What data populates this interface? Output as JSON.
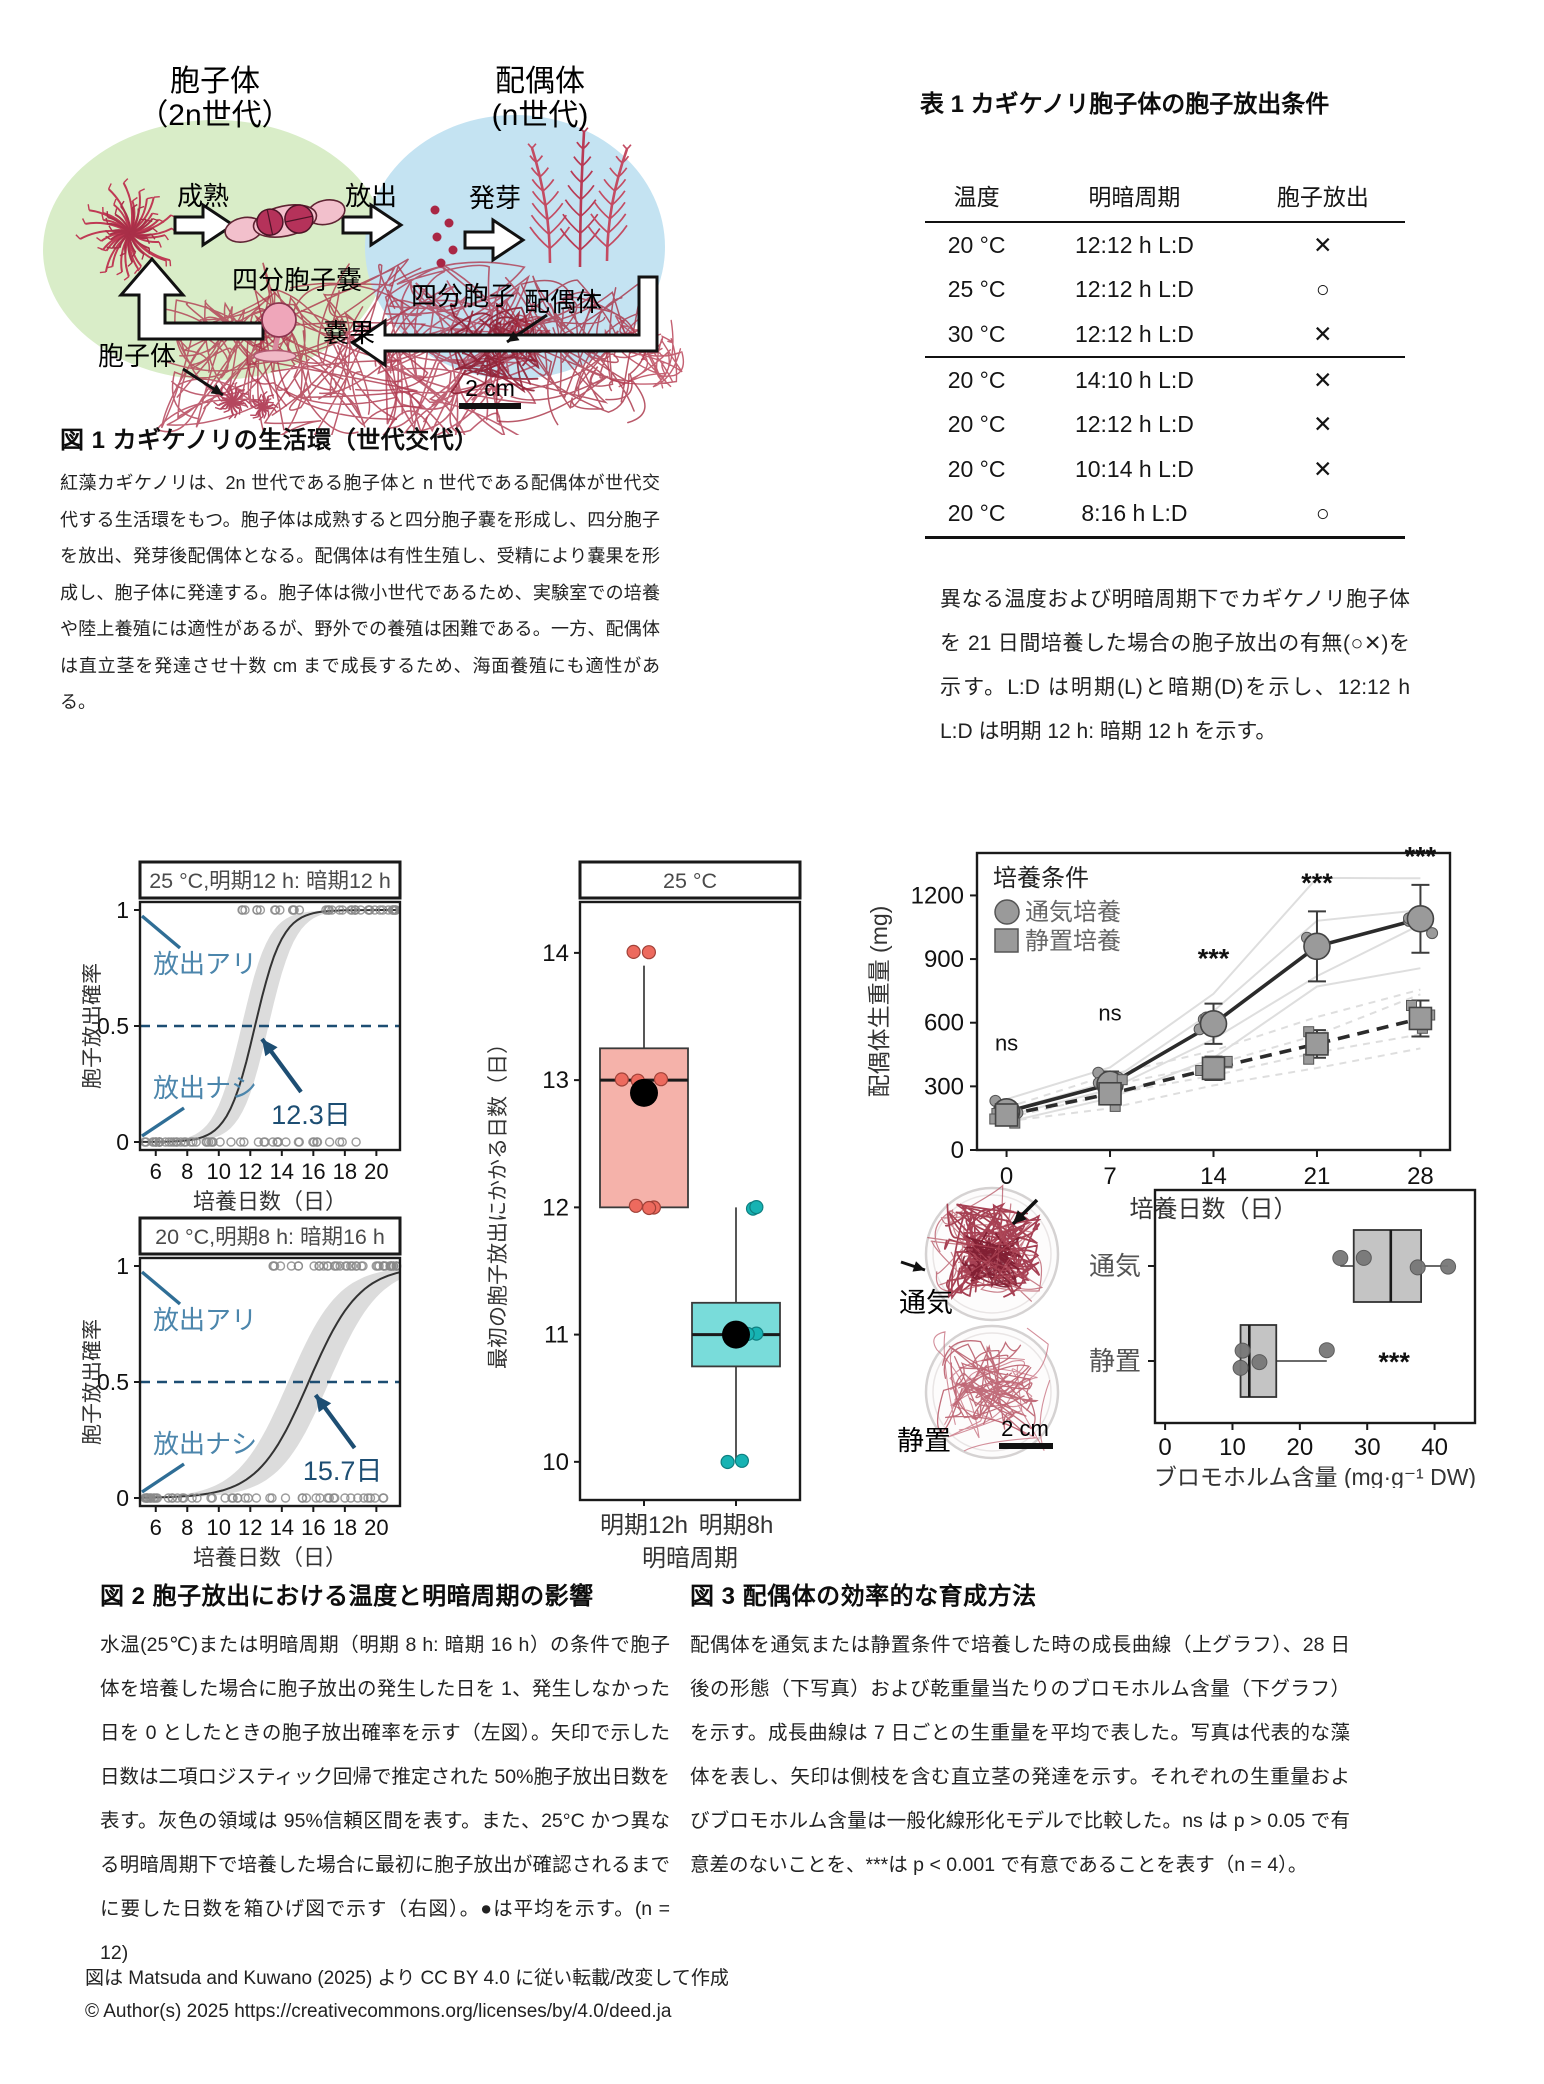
{
  "fig1": {
    "caption_title": "図 1 カギケノリの生活環（世代交代）",
    "caption_body": "紅藻カギケノリは、2n 世代である胞子体と n 世代である配偶体が世代交代する生活環をもつ。胞子体は成熟すると四分胞子嚢を形成し、四分胞子を放出、発芽後配偶体となる。配偶体は有性生殖し、受精により嚢果を形成し、胞子体に発達する。胞子体は微小世代であるため、実験室での培養や陸上養殖には適性があるが、野外での養殖は困難である。一方、配偶体は直立茎を発達させ十数 cm まで成長するため、海面養殖にも適性がある。",
    "diagram": {
      "sporophyte_title_line1": "胞子体",
      "sporophyte_title_line2": "（2n世代）",
      "gametophyte_title_line1": "配偶体",
      "gametophyte_title_line2": "(n世代)",
      "label_maturation": "成熟",
      "label_release": "放出",
      "label_germination": "発芽",
      "label_tetrasporangium": "四分胞子嚢",
      "label_tetraspore": "四分胞子",
      "label_cystocarp": "嚢果",
      "photo_label_sporophyte": "胞子体",
      "photo_label_gametophyte": "配偶体",
      "scalebar": "2 cm",
      "colors": {
        "sporophyte_ellipse": "#d9edc8",
        "gametophyte_ellipse": "#c4e3f2",
        "algae_red": "#b5394f"
      }
    }
  },
  "table1": {
    "title": "表 1 カギケノリ胞子体の胞子放出条件",
    "columns": [
      "温度",
      "明暗周期",
      "胞子放出"
    ],
    "groups": [
      {
        "rows": [
          [
            "20 °C",
            "12:12 h L:D",
            "✕"
          ],
          [
            "25 °C",
            "12:12 h L:D",
            "○"
          ],
          [
            "30 °C",
            "12:12 h L:D",
            "✕"
          ]
        ]
      },
      {
        "rows": [
          [
            "20 °C",
            "14:10 h L:D",
            "✕"
          ],
          [
            "20 °C",
            "12:12 h L:D",
            "✕"
          ],
          [
            "20 °C",
            "10:14 h L:D",
            "✕"
          ],
          [
            "20 °C",
            "8:16 h L:D",
            "○"
          ]
        ]
      }
    ],
    "note": "異なる温度および明暗周期下でカギケノリ胞子体を 21 日間培養した場合の胞子放出の有無(○✕)を示す。L:D は明期(L)と暗期(D)を示し、12:12 h L:D は明期 12 h: 暗期 12 h を示す。"
  },
  "fig2": {
    "caption_title": "図 2 胞子放出における温度と明暗周期の影響",
    "caption_body": "水温(25℃)または明暗周期（明期 8 h: 暗期 16 h）の条件で胞子体を培養した場合に胞子放出の発生した日を 1、発生しなかった日を 0 としたときの胞子放出確率を示す（左図）。矢印で示した日数は二項ロジスティック回帰で推定された 50%胞子放出日数を表す。灰色の領域は 95%信頼区間を表す。また、25°C かつ異なる明暗周期下で培養した場合に最初に胞子放出が確認されるまでに要した日数を箱ひげ図で示す（右図）。●は平均を示す。(n = 12)"
  },
  "fig3": {
    "caption_title": "図 3 配偶体の効率的な育成方法",
    "caption_body": "配偶体を通気または静置条件で培養した時の成長曲線（上グラフ）、28 日後の形態（下写真）および乾重量当たりのブロモホルム含量（下グラフ）を示す。成長曲線は 7 日ごとの生重量を平均で表した。写真は代表的な藻体を表し、矢印は側枝を含む直立茎の発達を示す。それぞれの生重量およびブロモホルム含量は一般化線形化モデルで比較した。ns は p > 0.05 で有意差のないことを、***は p < 0.001 で有意であることを表す（n = 4）。",
    "photos": {
      "aeration_label": "通気",
      "static_label": "静置",
      "scalebar": "2 cm"
    }
  },
  "footer": {
    "line1": "図は Matsuda and Kuwano (2025) より CC BY 4.0 に従い転載/改変して作成",
    "line2": "© Author(s) 2025 https://creativecommons.org/licenses/by/4.0/deed.ja"
  },
  "chart_data": [
    {
      "id": "logistic_25c_12h",
      "type": "line",
      "title": "25 °C,明期12 h: 暗期12 h",
      "xlabel": "培養日数（日）",
      "ylabel": "胞子放出確率",
      "xticks": [
        6,
        8,
        10,
        12,
        14,
        16,
        18,
        20
      ],
      "yticks": [
        0,
        0.5,
        1
      ],
      "xlim": [
        5,
        21.5
      ],
      "ed50_days": 12.3,
      "ed50_label": "12.3日",
      "slope": 1.15,
      "ci_width_days": 0.85,
      "threshold": 0.5,
      "label_release_yes": "放出アリ",
      "label_release_no": "放出ナシ",
      "rug_top_range": [
        11.2,
        21.3
      ],
      "rug_bottom_range": [
        5.3,
        18.8
      ],
      "colors": {
        "label_blue": "#4c86ac",
        "navy": "#1d4e73",
        "band": "#dcdcdc",
        "curve": "#333333"
      }
    },
    {
      "id": "logistic_20c_8h",
      "type": "line",
      "title": "20 °C,明期8 h: 暗期16 h",
      "xlabel": "培養日数（日）",
      "ylabel": "胞子放出確率",
      "xticks": [
        6,
        8,
        10,
        12,
        14,
        16,
        18,
        20
      ],
      "yticks": [
        0,
        0.5,
        1
      ],
      "xlim": [
        5,
        21.5
      ],
      "ed50_days": 15.7,
      "ed50_label": "15.7日",
      "slope": 0.62,
      "ci_width_days": 1.3,
      "threshold": 0.5,
      "label_release_yes": "放出アリ",
      "label_release_no": "放出ナシ",
      "rug_top_range": [
        13.2,
        21.3
      ],
      "rug_bottom_range": [
        5.3,
        20.5
      ],
      "colors": {
        "label_blue": "#4c86ac",
        "navy": "#1d4e73",
        "band": "#dcdcdc",
        "curve": "#333333"
      }
    },
    {
      "id": "first_release_days_boxplot",
      "type": "boxplot",
      "title": "25 °C",
      "xlabel": "明暗周期",
      "ylabel": "最初の胞子放出にかかる日数（日）",
      "yticks": [
        10,
        11,
        12,
        13,
        14
      ],
      "ylim": [
        9.7,
        14.4
      ],
      "categories": [
        "明期12h",
        "明期8h"
      ],
      "boxes": [
        {
          "label": "明期12h",
          "q1": 12,
          "median": 13,
          "q3": 13.25,
          "whisker_low": 12,
          "whisker_high": 13.9,
          "mean": 12.9,
          "points": [
            14,
            14,
            13,
            13,
            13,
            12,
            12,
            12
          ],
          "fill": "#f5b2aa",
          "point_color": "#ed6a5e",
          "point_stroke": "#a04138"
        },
        {
          "label": "明期8h",
          "q1": 10.75,
          "median": 11,
          "q3": 11.25,
          "whisker_low": 10,
          "whisker_high": 12,
          "mean": 11,
          "points": [
            12,
            12,
            11,
            11,
            11,
            10,
            10
          ],
          "fill": "#79dcda",
          "point_color": "#17b3b3",
          "point_stroke": "#0e7f80"
        }
      ],
      "n": 12
    },
    {
      "id": "gametophyte_growth",
      "type": "line",
      "legend_title": "培養条件",
      "xlabel": "培養日数（日）",
      "ylabel": "配偶体生重量 (mg)",
      "x": [
        0,
        7,
        14,
        21,
        28
      ],
      "xticks": [
        0,
        7,
        14,
        21,
        28
      ],
      "yticks": [
        0,
        300,
        600,
        900,
        1200
      ],
      "ylim": [
        0,
        1400
      ],
      "series": [
        {
          "name": "通気培養",
          "marker": "circle",
          "line": "solid",
          "values": [
            180,
            310,
            595,
            960,
            1090
          ],
          "errors": [
            45,
            60,
            95,
            165,
            160
          ]
        },
        {
          "name": "静置培養",
          "marker": "square",
          "line": "dashed",
          "values": [
            165,
            265,
            385,
            500,
            620
          ],
          "errors": [
            25,
            40,
            55,
            65,
            85
          ]
        }
      ],
      "significance": [
        {
          "x": 0,
          "label": "ns",
          "y": 470
        },
        {
          "x": 7,
          "label": "ns",
          "y": 610
        },
        {
          "x": 14,
          "label": "***",
          "y": 860
        },
        {
          "x": 21,
          "label": "***",
          "y": 1215
        },
        {
          "x": 28,
          "label": "***",
          "y": 1340
        }
      ],
      "marker_color": "#9a9a9a"
    },
    {
      "id": "bromoform_content",
      "type": "boxplot_h",
      "xlabel": "ブロモホルム含量 (mg·g⁻¹ DW)",
      "xticks": [
        0,
        10,
        20,
        30,
        40
      ],
      "xlim": [
        -1.5,
        46
      ],
      "categories": [
        "通気",
        "静置"
      ],
      "boxes": [
        {
          "label": "通気",
          "q1": 28,
          "median": 33.5,
          "q3": 38,
          "whisker_low": 26,
          "whisker_high": 42,
          "points": [
            26,
            29.5,
            37.5,
            42
          ]
        },
        {
          "label": "静置",
          "q1": 11.2,
          "median": 12.5,
          "q3": 16.5,
          "whisker_low": 11.2,
          "whisker_high": 24,
          "points": [
            11.2,
            11.5,
            14,
            24
          ]
        }
      ],
      "significance": {
        "text": "***",
        "x": 34,
        "row": 1
      },
      "box_fill": "#c4c4c4",
      "point_color": "#787878"
    }
  ]
}
